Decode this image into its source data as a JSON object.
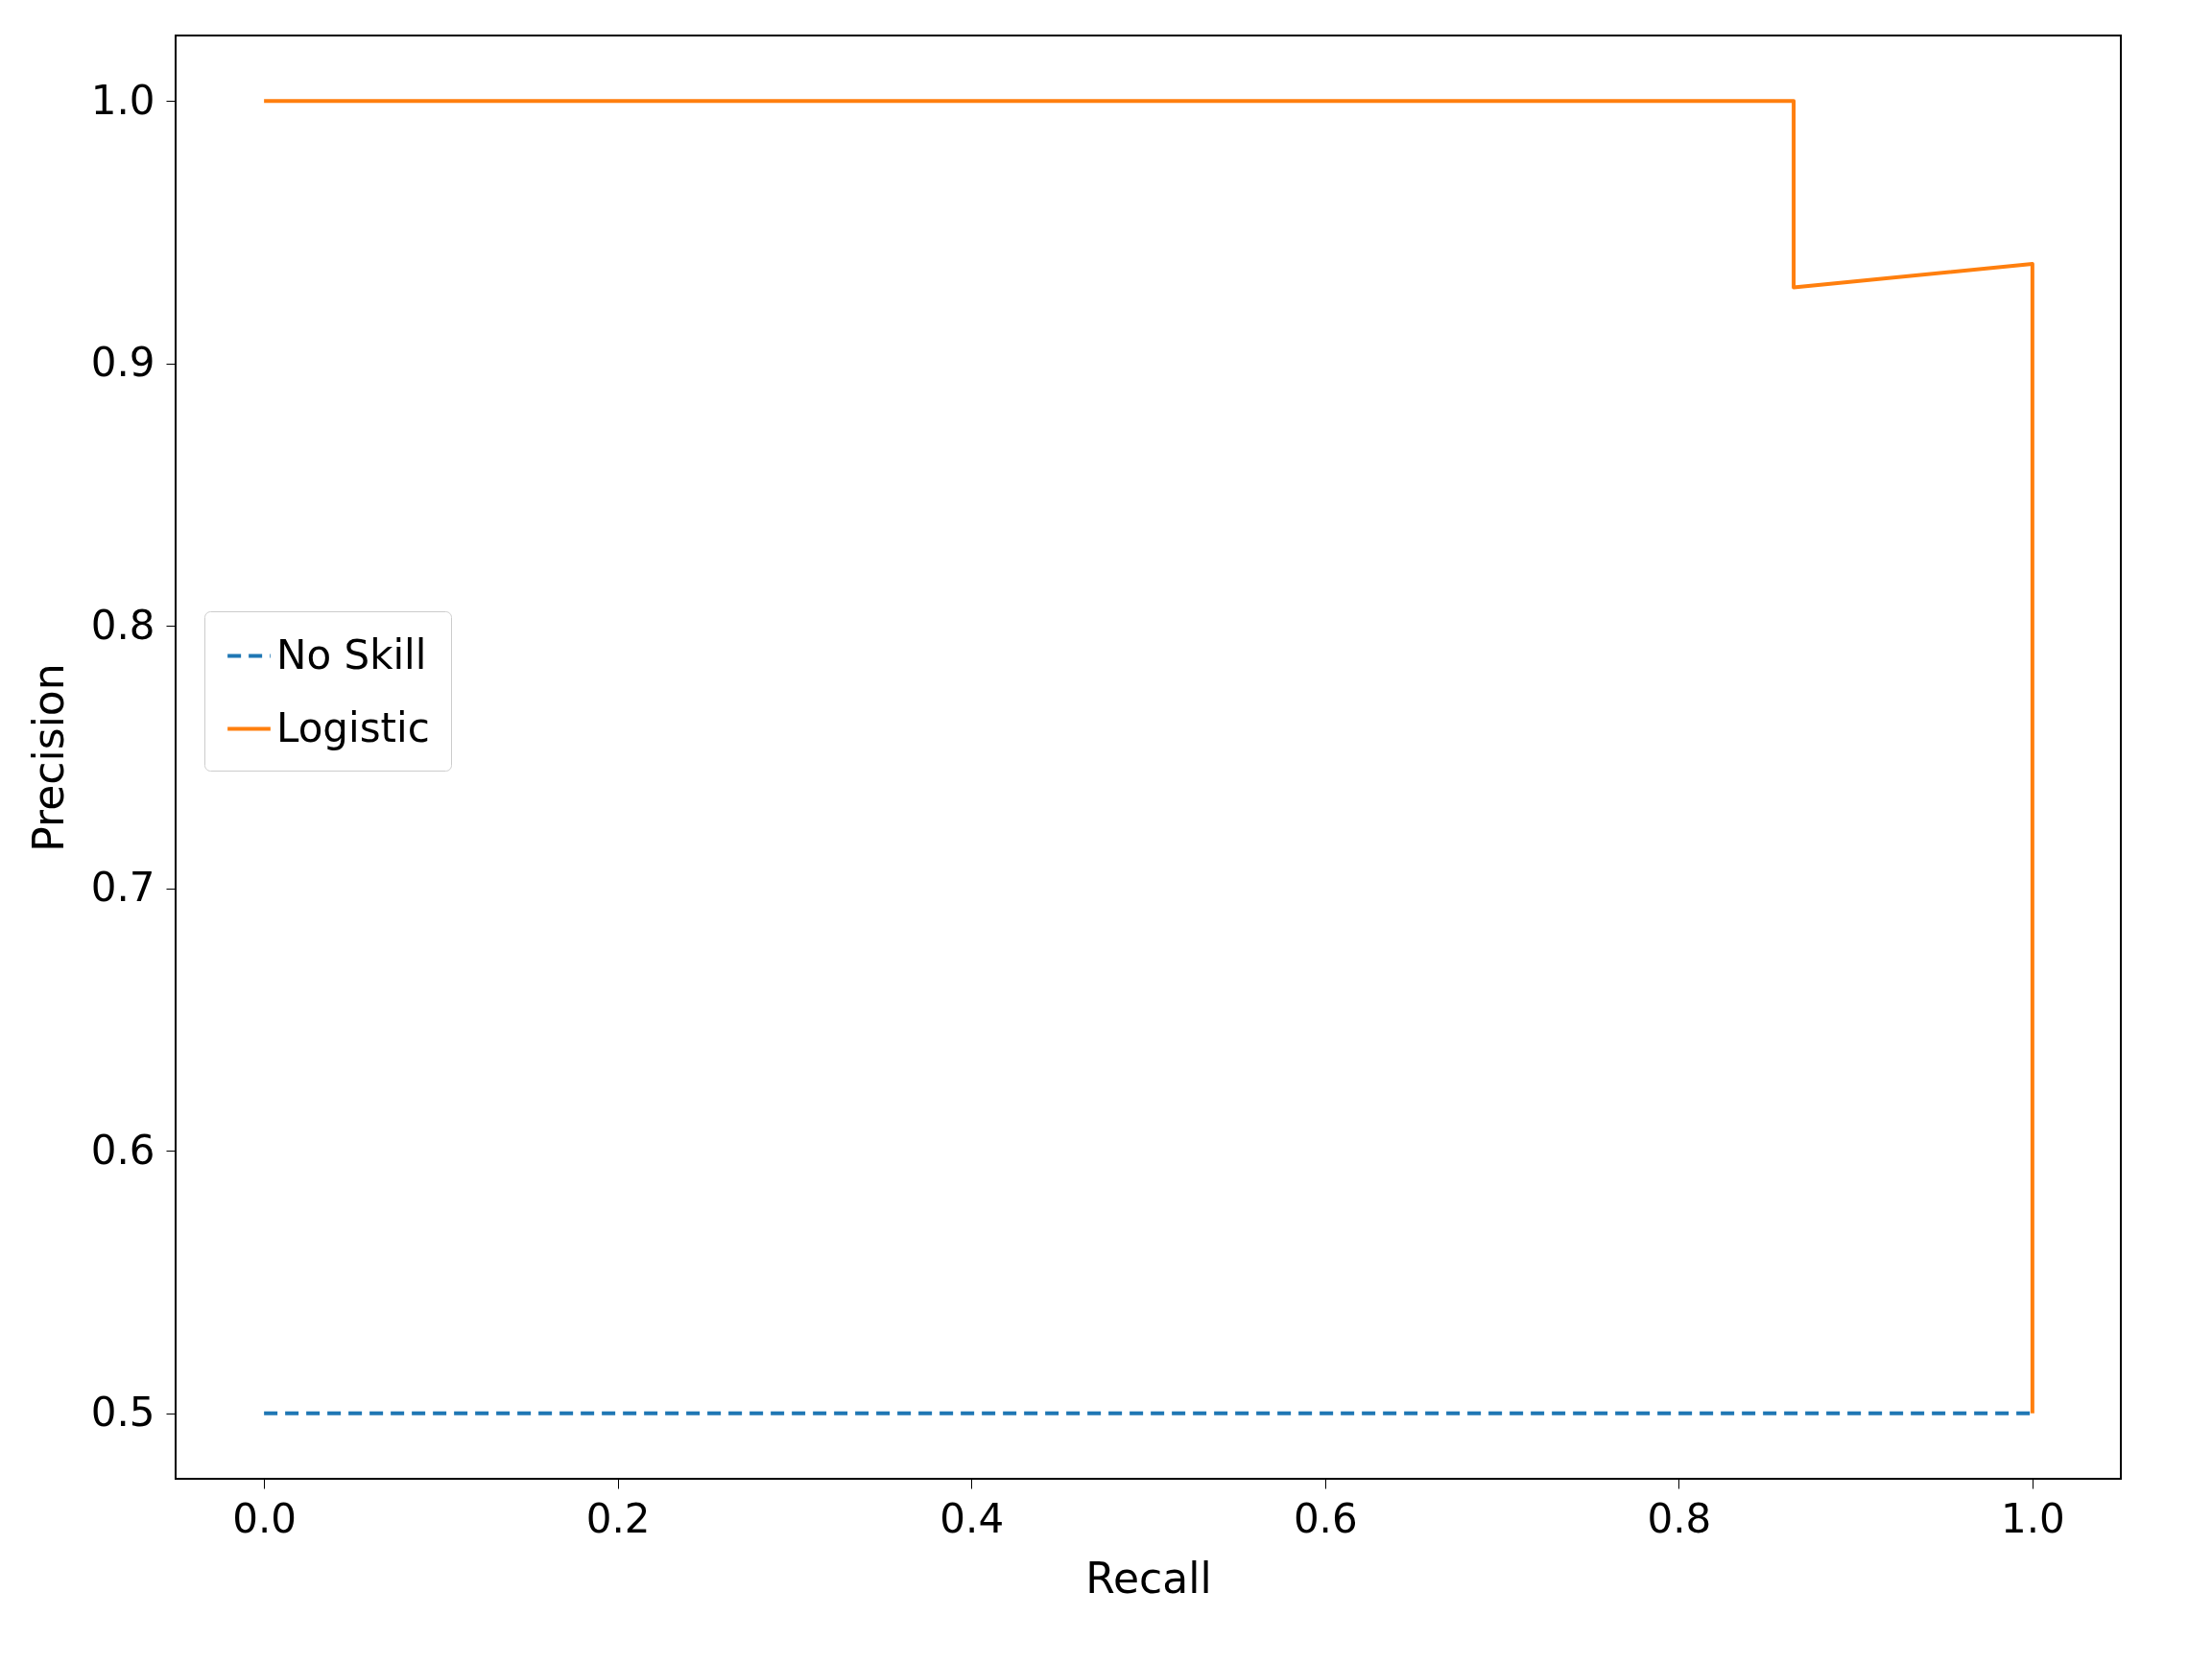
{
  "chart_data": {
    "type": "line",
    "xlabel": "Recall",
    "ylabel": "Precision",
    "xlim": [
      -0.05,
      1.05
    ],
    "ylim": [
      0.475,
      1.025
    ],
    "xticks": [
      {
        "value": 0,
        "label": "0.0"
      },
      0.2,
      0.4,
      0.6,
      0.8,
      {
        "value": 1,
        "label": "1.0"
      }
    ],
    "yticks": [
      0.5,
      0.6,
      0.7,
      0.8,
      0.9,
      {
        "value": 1,
        "label": "1.0"
      }
    ],
    "grid": false,
    "legend": "left",
    "marker": "none",
    "series": [
      {
        "name": "No Skill",
        "color": "#1f77b4",
        "line_style": "dashed",
        "x": [
          0,
          1
        ],
        "values": [
          0.5,
          0.5
        ]
      },
      {
        "name": "Logistic",
        "color": "#ff7f0e",
        "line_style": "solid",
        "x": [
          0,
          0.865,
          0.865,
          1,
          1
        ],
        "values": [
          1,
          1,
          0.929,
          0.938,
          0.5
        ]
      }
    ]
  }
}
